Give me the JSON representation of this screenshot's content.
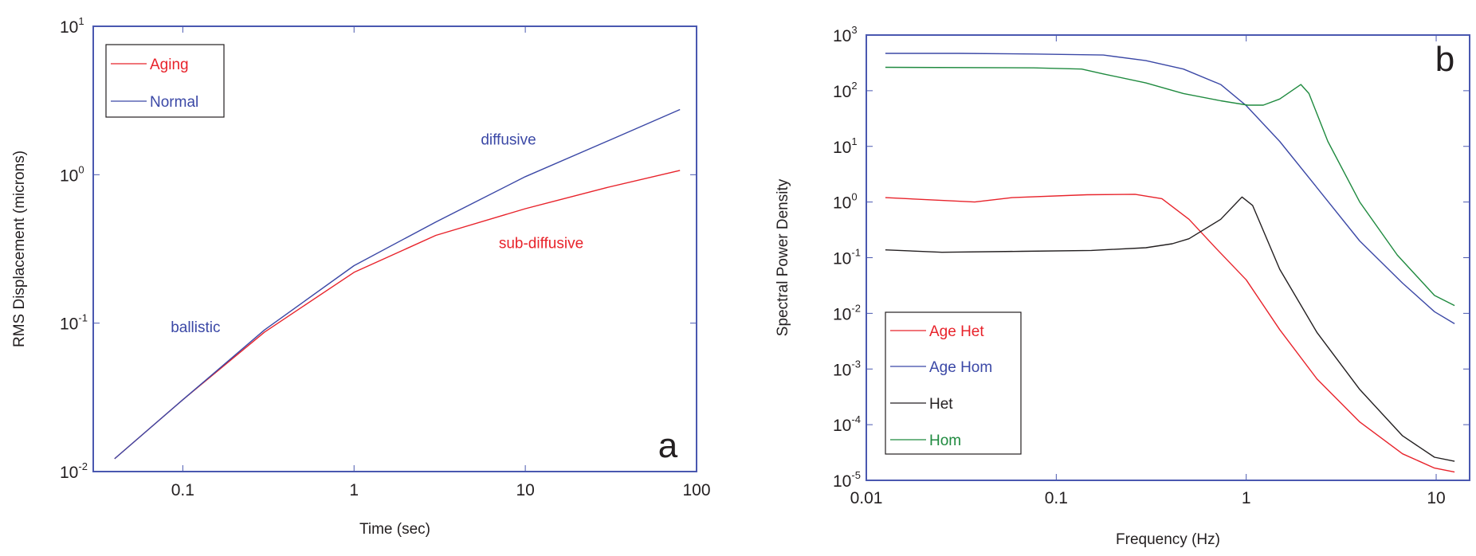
{
  "colors": {
    "frame": "#4a58b0",
    "red": "#e8232b",
    "blue": "#3b48a6",
    "black": "#231f20",
    "green": "#1f8a3f"
  },
  "chart_data": [
    {
      "type": "line",
      "panel_label": "a",
      "xlabel": "Time (sec)",
      "ylabel": "RMS Displacement (microns)",
      "xscale": "log",
      "yscale": "log",
      "xlim": [
        0.03,
        100
      ],
      "ylim": [
        0.01,
        10
      ],
      "x_ticks": [
        {
          "value": 0.1,
          "label": "0.1"
        },
        {
          "value": 1,
          "label": "1"
        },
        {
          "value": 10,
          "label": "10"
        },
        {
          "value": 100,
          "label": "100"
        }
      ],
      "y_ticks": [
        {
          "value": 10,
          "base": "10",
          "exp": "1"
        },
        {
          "value": 1,
          "base": "10",
          "exp": "0"
        },
        {
          "value": 0.1,
          "base": "10",
          "exp": "-1"
        },
        {
          "value": 0.01,
          "base": "10",
          "exp": "-2"
        }
      ],
      "legend": {
        "position": "top-left",
        "entries": [
          "Aging",
          "Normal"
        ]
      },
      "series": [
        {
          "name": "Aging",
          "color_key": "red",
          "x": [
            0.04,
            0.1,
            0.3,
            1,
            3,
            10,
            30,
            80
          ],
          "y": [
            0.0122,
            0.0305,
            0.087,
            0.22,
            0.39,
            0.59,
            0.82,
            1.07
          ]
        },
        {
          "name": "Normal",
          "color_key": "blue",
          "x": [
            0.04,
            0.1,
            0.3,
            1,
            3,
            10,
            30,
            80
          ],
          "y": [
            0.0122,
            0.0305,
            0.09,
            0.244,
            0.48,
            0.97,
            1.68,
            2.75
          ]
        }
      ],
      "annotations": [
        {
          "text": "diffusive",
          "color_key": "blue",
          "x": 5.5,
          "y": 1.6
        },
        {
          "text": "sub-diffusive",
          "color_key": "red",
          "x": 7,
          "y": 0.32
        },
        {
          "text": "ballistic",
          "color_key": "blue",
          "x": 0.085,
          "y": 0.087
        }
      ]
    },
    {
      "type": "line",
      "panel_label": "b",
      "xlabel": "Frequency (Hz)",
      "ylabel": "Spectral Power Density",
      "xscale": "log",
      "yscale": "log",
      "xlim": [
        0.01,
        15
      ],
      "ylim": [
        1e-05,
        1000
      ],
      "x_ticks": [
        {
          "value": 0.01,
          "label": "0.01"
        },
        {
          "value": 0.1,
          "label": "0.1"
        },
        {
          "value": 1,
          "label": "1"
        },
        {
          "value": 10,
          "label": "10"
        }
      ],
      "y_ticks": [
        {
          "value": 1000,
          "base": "10",
          "exp": "3"
        },
        {
          "value": 100,
          "base": "10",
          "exp": "2"
        },
        {
          "value": 10,
          "base": "10",
          "exp": "1"
        },
        {
          "value": 1,
          "base": "10",
          "exp": "0"
        },
        {
          "value": 0.1,
          "base": "10",
          "exp": "-1"
        },
        {
          "value": 0.01,
          "base": "10",
          "exp": "-2"
        },
        {
          "value": 0.001,
          "base": "10",
          "exp": "-3"
        },
        {
          "value": 0.0001,
          "base": "10",
          "exp": "-4"
        },
        {
          "value": 1e-05,
          "base": "10",
          "exp": "-5"
        }
      ],
      "legend": {
        "position": "bottom-left",
        "entries": [
          "Age Het",
          "Age Hom",
          "Het",
          "Hom"
        ]
      },
      "series": [
        {
          "name": "Age Het",
          "color_key": "red",
          "x": [
            0.0126,
            0.0372,
            0.0586,
            0.145,
            0.26,
            0.36,
            0.5,
            0.69,
            1.0,
            1.5,
            2.36,
            3.96,
            6.65,
            9.8,
            12.5
          ],
          "y": [
            1.2,
            1.0,
            1.2,
            1.35,
            1.38,
            1.15,
            0.49,
            0.15,
            0.04,
            0.0051,
            0.00066,
            0.000112,
            3e-05,
            1.66e-05,
            1.41e-05
          ]
        },
        {
          "name": "Age Hom",
          "color_key": "blue",
          "x": [
            0.0126,
            0.0307,
            0.076,
            0.177,
            0.296,
            0.467,
            0.734,
            1.0,
            1.5,
            2.36,
            3.96,
            6.65,
            9.8,
            12.5
          ],
          "y": [
            468,
            468,
            457,
            437,
            347,
            245,
            129,
            54,
            12.3,
            1.8,
            0.2,
            0.035,
            0.0107,
            0.0065
          ]
        },
        {
          "name": "Het",
          "color_key": "black",
          "x": [
            0.0126,
            0.025,
            0.066,
            0.153,
            0.296,
            0.408,
            0.5,
            0.734,
            0.95,
            1.08,
            1.5,
            2.36,
            3.96,
            6.65,
            9.8,
            12.5
          ],
          "y": [
            0.138,
            0.125,
            0.13,
            0.135,
            0.151,
            0.178,
            0.219,
            0.49,
            1.23,
            0.87,
            0.062,
            0.0045,
            0.00043,
            6.3e-05,
            2.6e-05,
            2.2e-05
          ]
        },
        {
          "name": "Hom",
          "color_key": "green",
          "x": [
            0.0126,
            0.076,
            0.136,
            0.177,
            0.296,
            0.467,
            0.734,
            1.02,
            1.23,
            1.5,
            1.94,
            2.14,
            2.69,
            3.96,
            6.24,
            9.8,
            12.5
          ],
          "y": [
            263,
            257,
            245,
            200,
            138,
            89,
            66,
            55,
            55,
            71,
            129,
            89,
            12.3,
            1.0,
            0.112,
            0.021,
            0.0138
          ]
        }
      ]
    }
  ]
}
